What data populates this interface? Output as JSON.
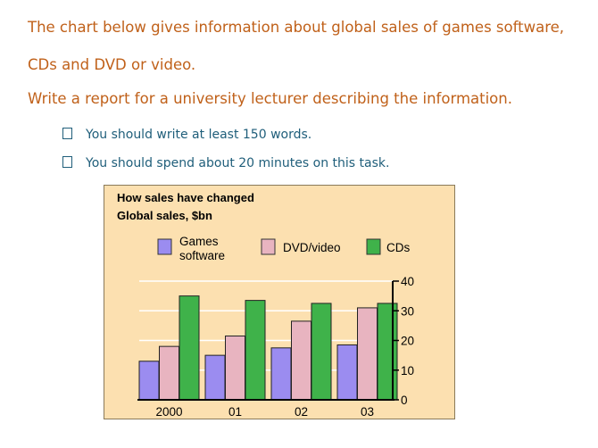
{
  "prompt": {
    "line1": "The chart below gives information about global sales of games software,",
    "line2": "CDs and DVD or video.",
    "line3": "Write a report for a university lecturer describing the information.",
    "bullets": [
      "You should write at least 150 words.",
      "You should spend about 20 minutes on this task."
    ]
  },
  "colors": {
    "games": "#9b8cf0",
    "dvd": "#e8b4c0",
    "cds": "#3fb24a",
    "panel": "#fce0b0"
  },
  "chart_data": {
    "type": "bar",
    "title": "How sales have changed",
    "subtitle": "Global sales, $bn",
    "categories": [
      "2000",
      "01",
      "02",
      "03"
    ],
    "series": [
      {
        "name": "Games software",
        "name_lines": [
          "Games",
          "software"
        ],
        "values": [
          13,
          15,
          17.5,
          18.5
        ]
      },
      {
        "name": "DVD/video",
        "name_lines": [
          "DVD/video"
        ],
        "values": [
          18,
          21.5,
          26.5,
          31
        ]
      },
      {
        "name": "CDs",
        "name_lines": [
          "CDs"
        ],
        "values": [
          35,
          33.5,
          32.5,
          32.5
        ]
      }
    ],
    "ylim": [
      0,
      40
    ],
    "yticks": [
      0,
      10,
      20,
      30,
      40
    ],
    "y_axis_side": "right",
    "grid": true,
    "legend": "top"
  }
}
